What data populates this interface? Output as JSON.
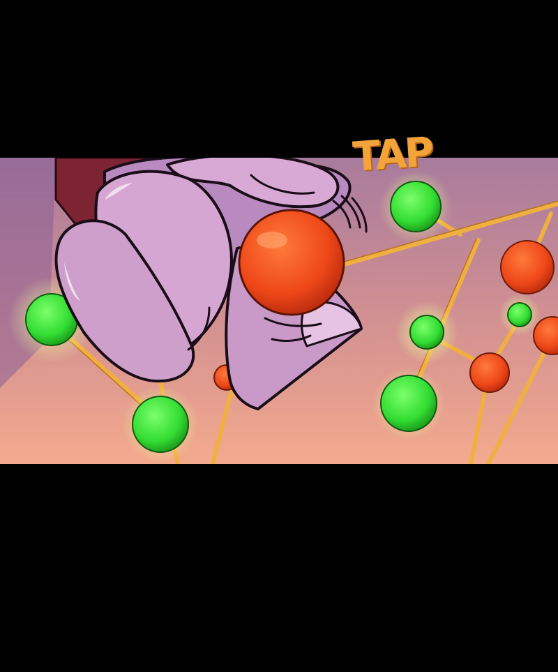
{
  "panel": {
    "sfx_text": "TAP",
    "colors": {
      "background_top": "#a77a9c",
      "background_bottom": "#f3a78c",
      "hand": "#cf9fcc",
      "hand_shadow": "#9a6a9e",
      "sleeve": "#7d2433",
      "red_atom": "#f04a1c",
      "green_atom": "#3fe03f",
      "rod": "#f0b040",
      "sfx": "#f2a33a",
      "letterbox": "#000000"
    },
    "icons": {
      "hand": "pointing-hand",
      "red_atoms": "red-sphere",
      "green_atoms": "green-sphere",
      "motion": "motion-lines"
    }
  }
}
